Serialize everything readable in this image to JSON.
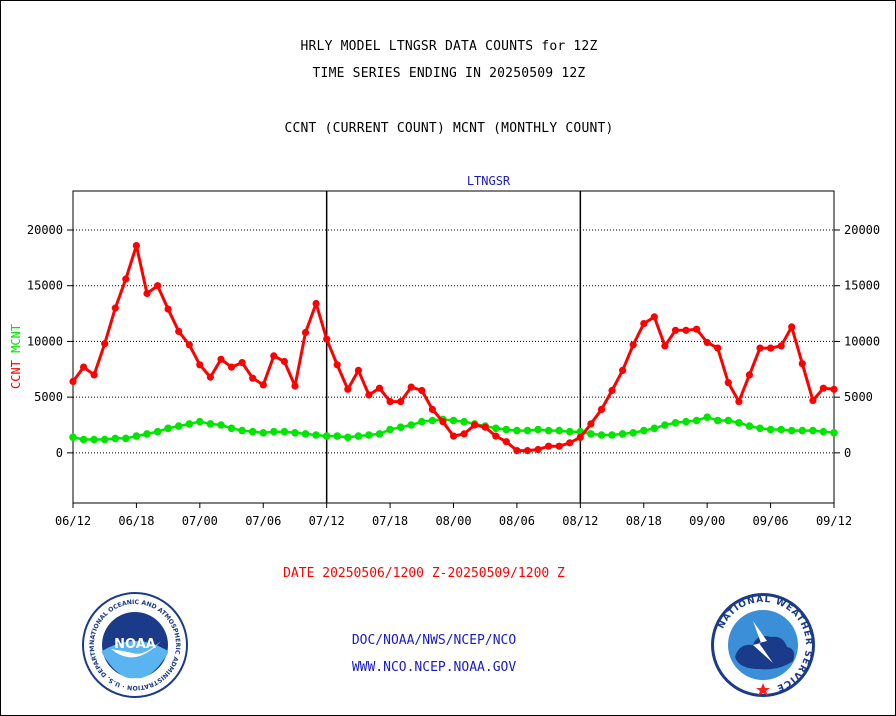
{
  "header": {
    "title1": "HRLY MODEL LTNGSR DATA COUNTS for 12Z",
    "title2": "TIME SERIES ENDING IN 20250509 12Z",
    "subtitle": "CCNT (CURRENT COUNT) MCNT (MONTHLY COUNT)"
  },
  "footer": {
    "date_range": "DATE 20250506/1200 Z-20250509/1200 Z",
    "credit1": "DOC/NOAA/NWS/NCEP/NCO",
    "credit2": "WWW.NCO.NCEP.NOAA.GOV"
  },
  "logos": {
    "noaa": {
      "icon": "noaa-seal-icon",
      "center_text": "NOAA",
      "ring_text": "NATIONAL OCEANIC AND ATMOSPHERIC ADMINISTRATION · U.S. DEPARTMENT OF COMMERCE"
    },
    "nws": {
      "icon": "nws-seal-icon",
      "ring_text": "NATIONAL WEATHER SERVICE"
    }
  },
  "colors": {
    "ccnt": "#ff0000",
    "mcnt": "#00e600",
    "legend_label": "#1a1acc",
    "grid": "#000000"
  },
  "chart_data": {
    "type": "line",
    "title": "LTNGSR",
    "ylabel_parts": [
      {
        "text": "CCNT",
        "color": "#ff0000"
      },
      {
        "text": "MCNT",
        "color": "#00e600"
      }
    ],
    "x_tick_labels": [
      "06/12",
      "06/18",
      "07/00",
      "07/06",
      "07/12",
      "07/18",
      "08/00",
      "08/06",
      "08/12",
      "08/18",
      "09/00",
      "09/06",
      "09/12"
    ],
    "x_range": [
      0,
      72
    ],
    "x_tick_step": 6,
    "x_major_lines": [
      24,
      48
    ],
    "y_ticks": [
      0,
      5000,
      10000,
      15000,
      20000
    ],
    "y_tick_labels": [
      "0",
      "5000",
      "10000",
      "15000",
      "20000"
    ],
    "ylim": [
      -4500,
      23500
    ],
    "grid": "horizontal dotted",
    "series": [
      {
        "name": "CCNT",
        "color": "#ff0000",
        "values": [
          6400,
          7700,
          7000,
          9800,
          13000,
          15600,
          18600,
          14300,
          15000,
          12900,
          10900,
          9700,
          7900,
          6800,
          8400,
          7700,
          8100,
          6700,
          6100,
          8700,
          8200,
          6000,
          10800,
          13400,
          10200,
          7900,
          5700,
          7400,
          5200,
          5800,
          4600,
          4600,
          5900,
          5600,
          3900,
          2800,
          1500,
          1700,
          2500,
          2300,
          1500,
          1000,
          200,
          200,
          300,
          600,
          600,
          900,
          1400,
          2600,
          3900,
          5600,
          7400,
          9700,
          11600,
          12200,
          9600,
          11000,
          11000,
          11100,
          9900,
          9400,
          6300,
          4600,
          7000,
          9400,
          9400,
          9600,
          11300,
          8000,
          4700,
          5800,
          5700
        ]
      },
      {
        "name": "MCNT",
        "color": "#00e600",
        "values": [
          1400,
          1200,
          1200,
          1200,
          1300,
          1300,
          1500,
          1700,
          1900,
          2200,
          2400,
          2600,
          2800,
          2600,
          2500,
          2200,
          2000,
          1900,
          1800,
          1900,
          1900,
          1800,
          1700,
          1600,
          1500,
          1500,
          1400,
          1500,
          1600,
          1700,
          2100,
          2300,
          2500,
          2800,
          2900,
          3000,
          2900,
          2800,
          2600,
          2400,
          2200,
          2100,
          2000,
          2000,
          2100,
          2000,
          2000,
          1900,
          1900,
          1700,
          1600,
          1600,
          1700,
          1800,
          2000,
          2200,
          2500,
          2700,
          2800,
          2900,
          3200,
          2900,
          2900,
          2700,
          2400,
          2200,
          2100,
          2100,
          2000,
          2000,
          2000,
          1900,
          1800
        ]
      }
    ]
  }
}
